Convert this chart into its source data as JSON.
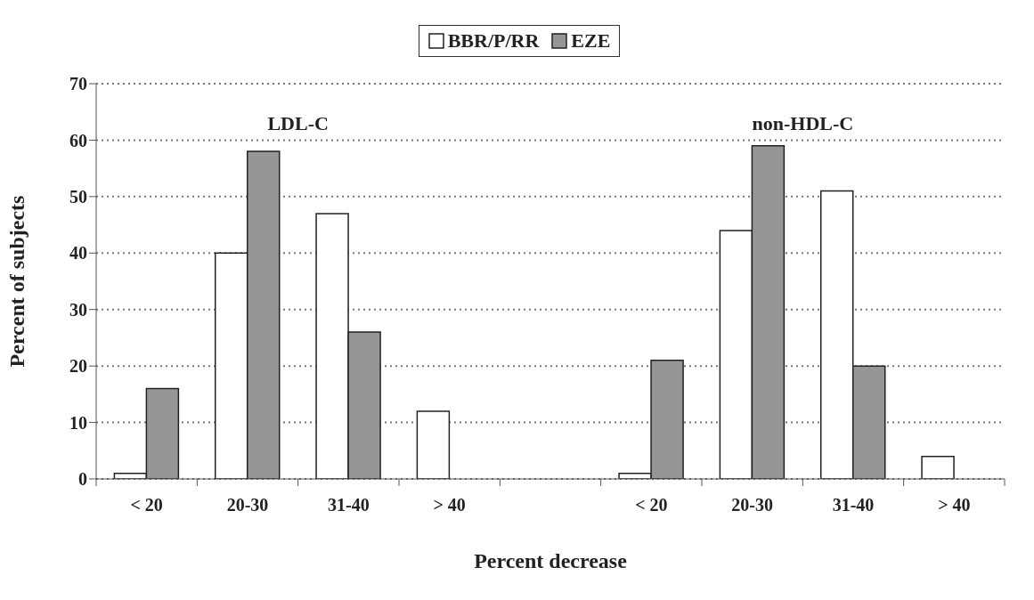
{
  "chart_data": {
    "type": "bar",
    "categories": [
      "< 20",
      "20-30",
      "31-40",
      "> 40",
      null,
      "< 20",
      "20-30",
      "31-40",
      "> 40"
    ],
    "series": [
      {
        "name": "BBR/P/RR",
        "color": "#ffffff",
        "values": [
          1,
          40,
          47,
          12,
          null,
          1,
          44,
          51,
          4
        ]
      },
      {
        "name": "EZE",
        "color": "#969696",
        "values": [
          16,
          58,
          26,
          0,
          null,
          21,
          59,
          20,
          0
        ]
      }
    ],
    "xlabel": "Percent decrease",
    "ylabel": "Percent of subjects",
    "annotations": [
      "LDL-C",
      "non-HDL-C"
    ],
    "ylim": [
      0,
      70
    ],
    "yticks": [
      0,
      10,
      20,
      30,
      40,
      50,
      60,
      70
    ],
    "grid": "y",
    "legend": "top"
  }
}
